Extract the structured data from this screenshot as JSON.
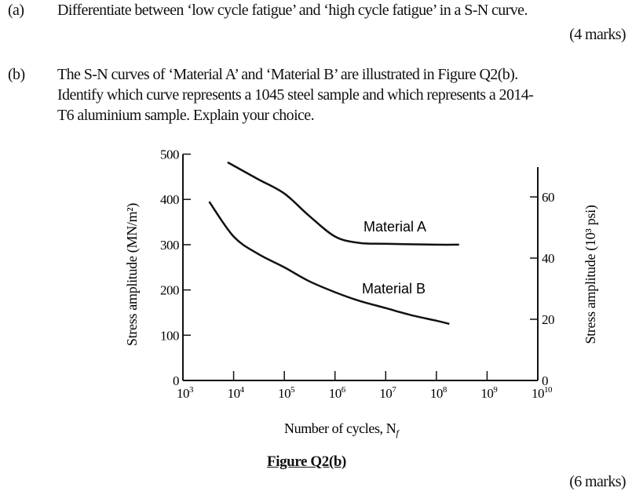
{
  "question_a": {
    "label": "(a)",
    "text": "Differentiate between ‘low cycle fatigue’ and ‘high cycle fatigue’ in a S-N curve.",
    "marks": "(4 marks)"
  },
  "question_b": {
    "label": "(b)",
    "lines": [
      "The S-N curves of ‘Material A’ and ‘Material B’ are illustrated in Figure Q2(b).",
      "Identify which curve represents a 1045 steel sample and which represents a 2014-",
      "T6 aluminium sample. Explain your choice."
    ],
    "marks": "(6 marks)"
  },
  "figure_caption": "Figure Q2(b)",
  "chart_data": {
    "type": "line",
    "xlabel": "Number of cycles, N_f",
    "x_scale": "log",
    "xlim": [
      1000.0,
      10000000000.0
    ],
    "x_ticks": [
      "10^3",
      "10^4",
      "10^5",
      "10^6",
      "10^7",
      "10^8",
      "10^9",
      "10^10"
    ],
    "ylabel": "Stress amplitude (MN/m²)",
    "ylim": [
      0,
      500
    ],
    "y_ticks": [
      0,
      100,
      200,
      300,
      400,
      500
    ],
    "y2label": "Stress amplitude (10³ psi)",
    "y2_ticks": [
      0,
      20,
      40,
      60
    ],
    "grid": false,
    "series": [
      {
        "name": "Material A",
        "points": [
          [
            7600.0,
            482
          ],
          [
            30000.0,
            445
          ],
          [
            100000.0,
            413
          ],
          [
            300000.0,
            365
          ],
          [
            1000000.0,
            318
          ],
          [
            3000000.0,
            304
          ],
          [
            10000000.0,
            302
          ],
          [
            100000000.0,
            300
          ],
          [
            280000000.0,
            300
          ]
        ]
      },
      {
        "name": "Material B",
        "points": [
          [
            3300.0,
            395
          ],
          [
            10000.0,
            318
          ],
          [
            30000.0,
            280
          ],
          [
            100000.0,
            250
          ],
          [
            300000.0,
            220
          ],
          [
            1000000.0,
            195
          ],
          [
            3000000.0,
            176
          ],
          [
            10000000.0,
            160
          ],
          [
            30000000.0,
            145
          ],
          [
            100000000.0,
            132
          ],
          [
            180000000.0,
            125
          ]
        ]
      }
    ]
  }
}
